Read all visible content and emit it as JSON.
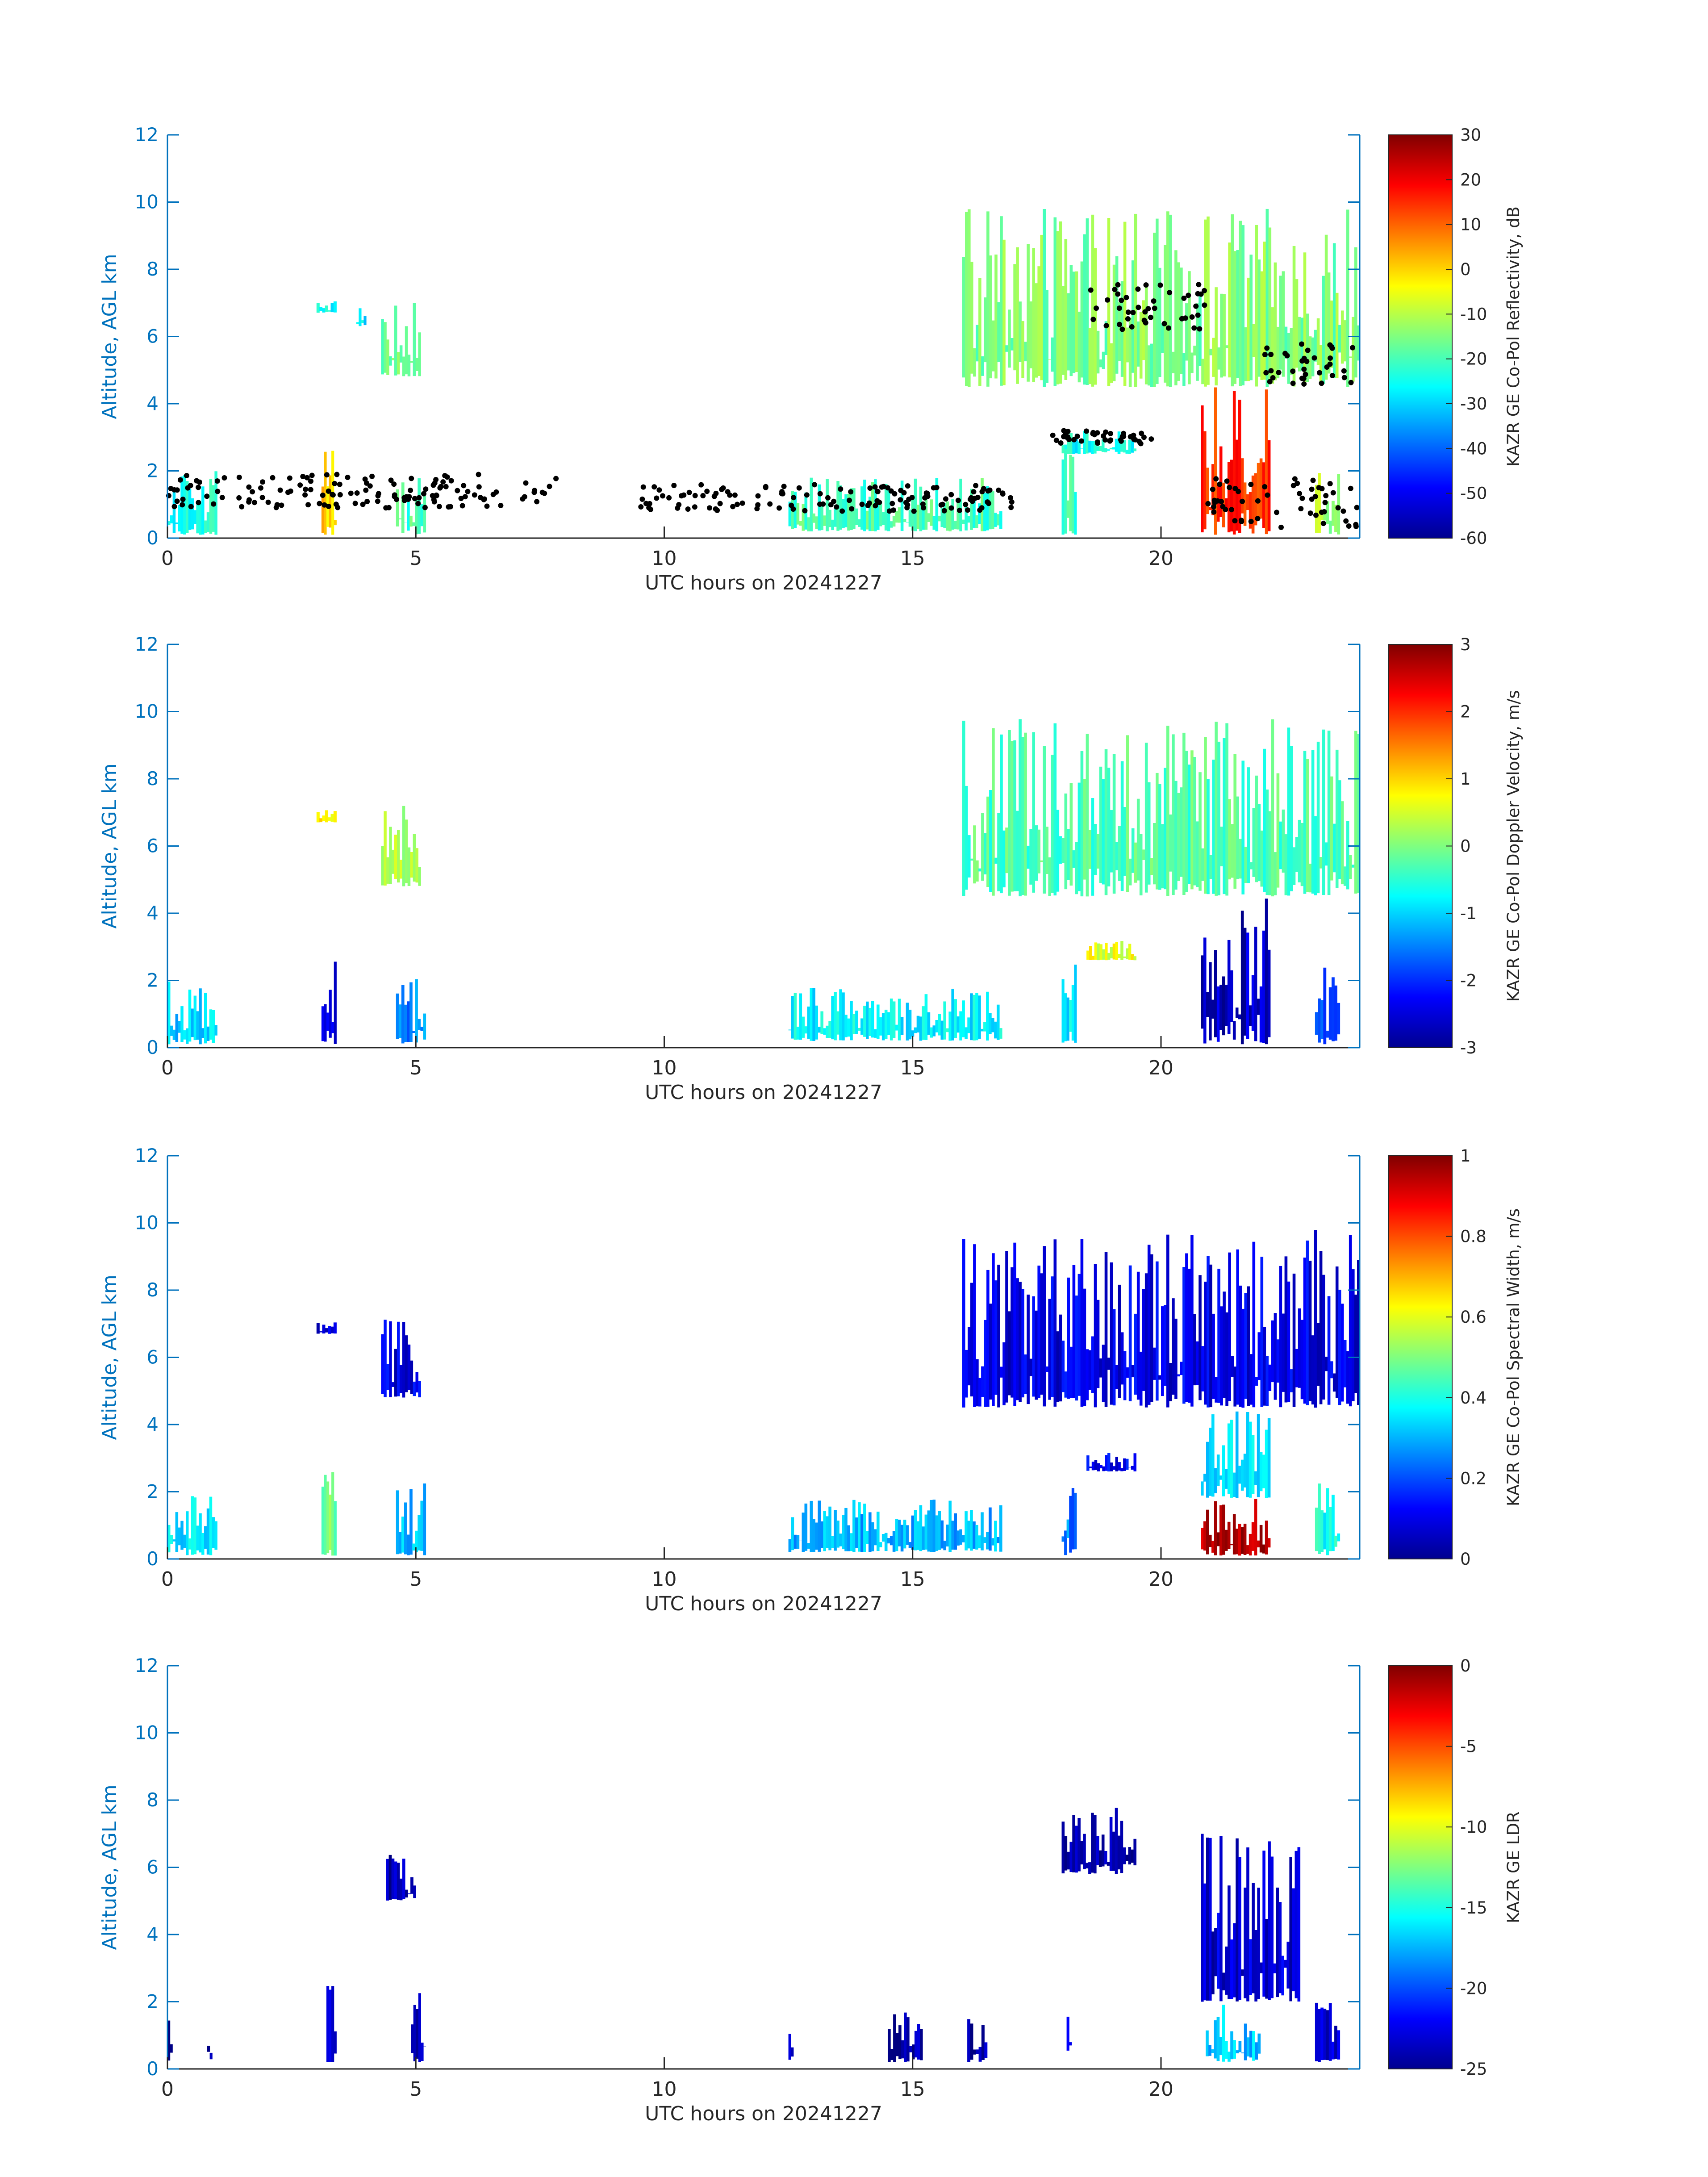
{
  "chart_data": [
    {
      "type": "heatmap",
      "xlabel": "UTC hours on 20241227",
      "ylabel": "Altitude, AGL km",
      "xlim": [
        0,
        24
      ],
      "ylim": [
        0,
        12
      ],
      "xticks": [
        "0",
        "5",
        "10",
        "15",
        "20"
      ],
      "yticks": [
        "0",
        "2",
        "4",
        "6",
        "8",
        "10",
        "12"
      ],
      "colorbar": {
        "label": "KAZR GE Co-Pol Reflectivity, dB",
        "min": -60,
        "max": 30,
        "ticks": [
          "30",
          "20",
          "10",
          "0",
          "-10",
          "-20",
          "-30",
          "-40",
          "-50",
          "-60"
        ]
      },
      "overlay": "cloud base points (black dots)",
      "regions": [
        {
          "x": [
            3.0,
            3.4
          ],
          "y": [
            6.7,
            7.1
          ],
          "value": -25
        },
        {
          "x": [
            3.8,
            4.0
          ],
          "y": [
            6.3,
            6.9
          ],
          "value": -28
        },
        {
          "x": [
            4.3,
            5.1
          ],
          "y": [
            4.8,
            7.2
          ],
          "value": -18
        },
        {
          "x": [
            16.0,
            24.0
          ],
          "y": [
            4.5,
            9.8
          ],
          "value": -15
        },
        {
          "x": [
            18.0,
            19.5
          ],
          "y": [
            2.5,
            3.2
          ],
          "value": -25
        },
        {
          "x": [
            0.0,
            1.0
          ],
          "y": [
            0.1,
            2.0
          ],
          "value": -25
        },
        {
          "x": [
            3.1,
            3.4
          ],
          "y": [
            0.1,
            2.6
          ],
          "value": 0
        },
        {
          "x": [
            4.6,
            5.2
          ],
          "y": [
            0.1,
            2.3
          ],
          "value": -20
        },
        {
          "x": [
            12.5,
            16.8
          ],
          "y": [
            0.2,
            1.8
          ],
          "value": -20
        },
        {
          "x": [
            18.0,
            18.3
          ],
          "y": [
            0.1,
            3.0
          ],
          "value": -20
        },
        {
          "x": [
            20.8,
            22.2
          ],
          "y": [
            0.1,
            4.5
          ],
          "value": 15
        },
        {
          "x": [
            23.1,
            23.6
          ],
          "y": [
            0.1,
            2.4
          ],
          "value": -12
        }
      ]
    },
    {
      "type": "heatmap",
      "xlabel": "UTC hours on 20241227",
      "ylabel": "Altitude, AGL km",
      "xlim": [
        0,
        24
      ],
      "ylim": [
        0,
        12
      ],
      "xticks": [
        "0",
        "5",
        "10",
        "15",
        "20"
      ],
      "yticks": [
        "0",
        "2",
        "4",
        "6",
        "8",
        "10",
        "12"
      ],
      "colorbar": {
        "label": "KAZR GE Co-Pol Doppler Velocity, m/s",
        "min": -3,
        "max": 3,
        "ticks": [
          "3",
          "2",
          "1",
          "0",
          "-1",
          "-2",
          "-3"
        ]
      },
      "regions": [
        {
          "x": [
            3.0,
            3.4
          ],
          "y": [
            6.7,
            7.1
          ],
          "value": 0.8
        },
        {
          "x": [
            4.3,
            5.1
          ],
          "y": [
            4.8,
            7.2
          ],
          "value": 0.3
        },
        {
          "x": [
            16.0,
            24.0
          ],
          "y": [
            4.5,
            9.8
          ],
          "value": -0.3
        },
        {
          "x": [
            18.5,
            19.5
          ],
          "y": [
            2.6,
            3.2
          ],
          "value": 0.6
        },
        {
          "x": [
            0.0,
            1.0
          ],
          "y": [
            0.1,
            2.0
          ],
          "value": -1.0
        },
        {
          "x": [
            3.1,
            3.4
          ],
          "y": [
            0.1,
            2.6
          ],
          "value": -2.5
        },
        {
          "x": [
            4.6,
            5.2
          ],
          "y": [
            0.1,
            2.3
          ],
          "value": -1.5
        },
        {
          "x": [
            12.5,
            16.8
          ],
          "y": [
            0.2,
            1.8
          ],
          "value": -0.8
        },
        {
          "x": [
            18.0,
            18.3
          ],
          "y": [
            0.1,
            3.0
          ],
          "value": -0.8
        },
        {
          "x": [
            20.8,
            22.2
          ],
          "y": [
            0.1,
            4.5
          ],
          "value": -2.6
        },
        {
          "x": [
            23.1,
            23.6
          ],
          "y": [
            0.1,
            2.4
          ],
          "value": -1.8
        }
      ]
    },
    {
      "type": "heatmap",
      "xlabel": "UTC hours on 20241227",
      "ylabel": "Altitude, AGL km",
      "xlim": [
        0,
        24
      ],
      "ylim": [
        0,
        12
      ],
      "xticks": [
        "0",
        "5",
        "10",
        "15",
        "20"
      ],
      "yticks": [
        "0",
        "2",
        "4",
        "6",
        "8",
        "10",
        "12"
      ],
      "colorbar": {
        "label": "KAZR GE Co-Pol Spectral Width, m/s",
        "min": 0,
        "max": 1,
        "ticks": [
          "1",
          "0.8",
          "0.6",
          "0.4",
          "0.2",
          "0"
        ]
      },
      "regions": [
        {
          "x": [
            3.0,
            3.4
          ],
          "y": [
            6.7,
            7.1
          ],
          "value": 0.08
        },
        {
          "x": [
            4.3,
            5.1
          ],
          "y": [
            4.8,
            7.2
          ],
          "value": 0.1
        },
        {
          "x": [
            16.0,
            24.0
          ],
          "y": [
            4.5,
            9.8
          ],
          "value": 0.1
        },
        {
          "x": [
            18.5,
            19.5
          ],
          "y": [
            2.6,
            3.2
          ],
          "value": 0.12
        },
        {
          "x": [
            0.0,
            1.0
          ],
          "y": [
            0.1,
            2.0
          ],
          "value": 0.35
        },
        {
          "x": [
            3.1,
            3.4
          ],
          "y": [
            0.1,
            2.6
          ],
          "value": 0.5
        },
        {
          "x": [
            4.6,
            5.2
          ],
          "y": [
            0.1,
            2.3
          ],
          "value": 0.3
        },
        {
          "x": [
            12.5,
            16.8
          ],
          "y": [
            0.2,
            1.8
          ],
          "value": 0.3
        },
        {
          "x": [
            18.0,
            18.3
          ],
          "y": [
            0.1,
            3.0
          ],
          "value": 0.25
        },
        {
          "x": [
            20.8,
            22.2
          ],
          "y": [
            0.1,
            1.8
          ],
          "value": 0.95
        },
        {
          "x": [
            20.8,
            22.2
          ],
          "y": [
            1.8,
            4.5
          ],
          "value": 0.35
        },
        {
          "x": [
            23.1,
            23.6
          ],
          "y": [
            0.1,
            2.4
          ],
          "value": 0.4
        }
      ]
    },
    {
      "type": "heatmap",
      "xlabel": "UTC hours on 20241227",
      "ylabel": "Altitude, AGL km",
      "xlim": [
        0,
        24
      ],
      "ylim": [
        0,
        12
      ],
      "xticks": [
        "0",
        "5",
        "10",
        "15",
        "20"
      ],
      "yticks": [
        "0",
        "2",
        "4",
        "6",
        "8",
        "10",
        "12"
      ],
      "colorbar": {
        "label": "KAZR GE LDR",
        "min": -25,
        "max": 0,
        "ticks": [
          "0",
          "-5",
          "-10",
          "-15",
          "-20",
          "-25"
        ]
      },
      "regions": [
        {
          "x": [
            4.4,
            5.0
          ],
          "y": [
            5.0,
            6.5
          ],
          "value": -24
        },
        {
          "x": [
            18.0,
            19.5
          ],
          "y": [
            5.8,
            7.8
          ],
          "value": -24
        },
        {
          "x": [
            20.8,
            22.8
          ],
          "y": [
            2.0,
            7.0
          ],
          "value": -23
        },
        {
          "x": [
            0.0,
            0.1
          ],
          "y": [
            0.2,
            2.0
          ],
          "value": -24
        },
        {
          "x": [
            0.8,
            0.9
          ],
          "y": [
            0.2,
            1.8
          ],
          "value": -24
        },
        {
          "x": [
            3.2,
            3.4
          ],
          "y": [
            0.2,
            2.5
          ],
          "value": -23
        },
        {
          "x": [
            4.9,
            5.2
          ],
          "y": [
            0.2,
            2.3
          ],
          "value": -23
        },
        {
          "x": [
            12.5,
            12.6
          ],
          "y": [
            0.2,
            1.5
          ],
          "value": -24
        },
        {
          "x": [
            14.5,
            15.2
          ],
          "y": [
            0.2,
            1.7
          ],
          "value": -24
        },
        {
          "x": [
            16.1,
            16.5
          ],
          "y": [
            0.2,
            1.6
          ],
          "value": -24
        },
        {
          "x": [
            18.1,
            18.2
          ],
          "y": [
            0.2,
            2.8
          ],
          "value": -23
        },
        {
          "x": [
            20.9,
            22.0
          ],
          "y": [
            0.2,
            2.0
          ],
          "value": -17
        },
        {
          "x": [
            23.1,
            23.6
          ],
          "y": [
            0.2,
            2.1
          ],
          "value": -23
        }
      ]
    }
  ]
}
